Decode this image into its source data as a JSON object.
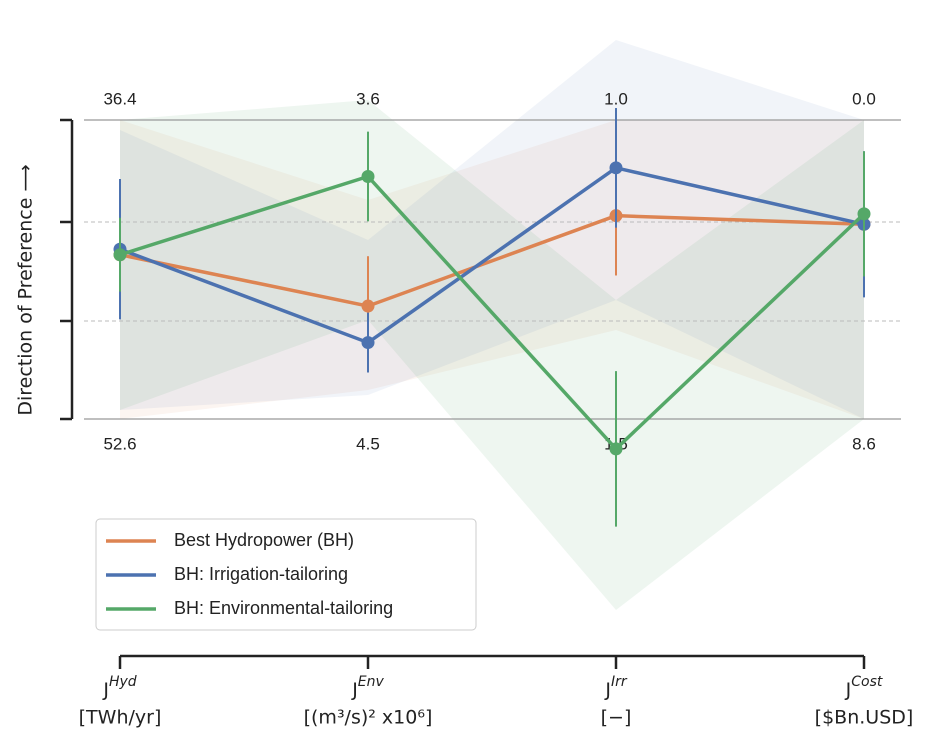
{
  "chart_data": {
    "type": "parallel",
    "y_label": "Direction of Preference ⟶",
    "axes": [
      {
        "name": "J",
        "sup": "Hyd",
        "unit": "[TWh/yr]",
        "top": 36.4,
        "bottom": 52.6
      },
      {
        "name": "J",
        "sup": "Env",
        "unit": "[(m³/s)² x10⁶]",
        "top": 3.6,
        "bottom": 4.5
      },
      {
        "name": "J",
        "sup": "Irr",
        "unit": "[−]",
        "top": {
          "value": 1,
          "label": "1.0"
        },
        "bottom": 1.5
      },
      {
        "name": "J",
        "sup": "Cost",
        "unit": "[$Bn.USD]",
        "top": {
          "value": 0,
          "label": "0.0"
        },
        "bottom": 8.6
      }
    ],
    "series": [
      {
        "name": "Best Hydropower (BH)",
        "color": "#dd8452",
        "values": [
          43.7,
          4.16,
          1.16,
          3.0
        ],
        "errors": [
          1.5,
          0.15,
          0.1,
          1.2
        ]
      },
      {
        "name": "BH: Irrigation-tailoring",
        "color": "#4c72b0",
        "values": [
          43.4,
          4.27,
          1.08,
          3.0
        ],
        "errors": [
          3.8,
          0.09,
          0.1,
          2.1
        ]
      },
      {
        "name": "BH: Environmental-tailoring",
        "color": "#55a868",
        "values": [
          43.7,
          3.77,
          1.55,
          2.7
        ],
        "errors": [
          2.0,
          0.135,
          0.13,
          1.8
        ]
      }
    ]
  }
}
